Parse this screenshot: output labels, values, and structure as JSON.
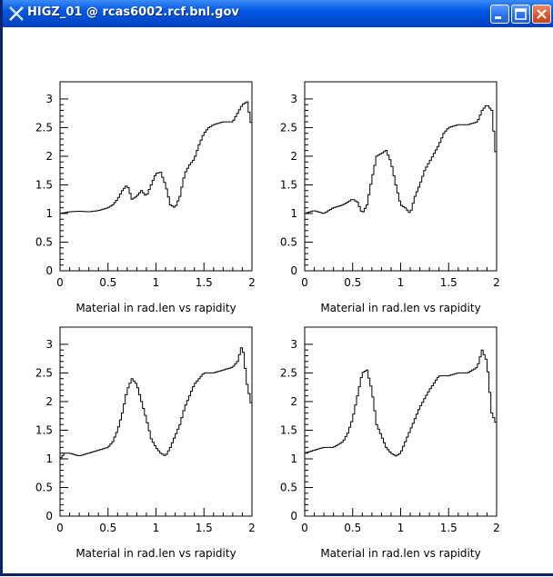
{
  "window": {
    "title": "HIGZ_01 @ rcas6002.rcf.bnl.gov",
    "icon": "x-window-icon",
    "buttons": [
      "minimize",
      "maximize",
      "close"
    ]
  },
  "chart_data": [
    {
      "type": "line",
      "xlabel": "Material in rad.len vs rapidity",
      "xlim": [
        0,
        2
      ],
      "ylim": [
        0,
        3.3
      ],
      "xticks": [
        "0",
        "0.5",
        "1",
        "1.5",
        "2"
      ],
      "yticks": [
        "0",
        "0.5",
        "1",
        "1.5",
        "2",
        "2.5",
        "3"
      ],
      "series": [
        {
          "x": [
            0,
            0.1,
            0.2,
            0.3,
            0.4,
            0.5,
            0.55,
            0.6,
            0.65,
            0.7,
            0.75,
            0.8,
            0.85,
            0.9,
            0.95,
            1.0,
            1.05,
            1.1,
            1.15,
            1.2,
            1.25,
            1.3,
            1.35,
            1.4,
            1.45,
            1.5,
            1.55,
            1.6,
            1.7,
            1.8,
            1.9,
            1.95,
            2.0
          ],
          "y": [
            1.0,
            1.03,
            1.04,
            1.03,
            1.05,
            1.1,
            1.15,
            1.25,
            1.4,
            1.5,
            1.25,
            1.3,
            1.4,
            1.3,
            1.5,
            1.7,
            1.72,
            1.5,
            1.15,
            1.1,
            1.3,
            1.7,
            1.85,
            1.95,
            2.2,
            2.4,
            2.5,
            2.55,
            2.6,
            2.6,
            2.9,
            2.95,
            2.5
          ]
        }
      ]
    },
    {
      "type": "line",
      "xlabel": "Material in rad.len vs rapidity",
      "xlim": [
        0,
        2
      ],
      "ylim": [
        0,
        3.3
      ],
      "xticks": [
        "0",
        "0.5",
        "1",
        "1.5",
        "2"
      ],
      "yticks": [
        "0",
        "0.5",
        "1",
        "1.5",
        "2",
        "2.5",
        "3"
      ],
      "series": [
        {
          "x": [
            0,
            0.1,
            0.2,
            0.3,
            0.4,
            0.5,
            0.55,
            0.6,
            0.65,
            0.7,
            0.75,
            0.8,
            0.85,
            0.9,
            0.95,
            1.0,
            1.05,
            1.1,
            1.15,
            1.2,
            1.25,
            1.3,
            1.35,
            1.4,
            1.45,
            1.5,
            1.6,
            1.7,
            1.8,
            1.85,
            1.9,
            1.95,
            2.0
          ],
          "y": [
            1.0,
            1.05,
            1.0,
            1.1,
            1.15,
            1.25,
            1.2,
            1.0,
            1.15,
            1.6,
            2.0,
            2.05,
            2.1,
            1.9,
            1.5,
            1.15,
            1.1,
            1.0,
            1.3,
            1.5,
            1.75,
            1.9,
            2.05,
            2.2,
            2.4,
            2.5,
            2.55,
            2.55,
            2.6,
            2.8,
            2.9,
            2.8,
            1.9
          ]
        }
      ]
    },
    {
      "type": "line",
      "xlabel": "Material in rad.len vs rapidity",
      "xlim": [
        0,
        2
      ],
      "ylim": [
        0,
        3.3
      ],
      "xticks": [
        "0",
        "0.5",
        "1",
        "1.5",
        "2"
      ],
      "yticks": [
        "0",
        "0.5",
        "1",
        "1.5",
        "2",
        "2.5",
        "3"
      ],
      "series": [
        {
          "x": [
            0,
            0.05,
            0.1,
            0.2,
            0.3,
            0.4,
            0.5,
            0.55,
            0.6,
            0.65,
            0.7,
            0.75,
            0.8,
            0.85,
            0.9,
            0.95,
            1.0,
            1.05,
            1.1,
            1.15,
            1.2,
            1.25,
            1.3,
            1.35,
            1.4,
            1.5,
            1.6,
            1.7,
            1.8,
            1.85,
            1.9,
            1.95,
            2.0
          ],
          "y": [
            1.0,
            1.1,
            1.1,
            1.05,
            1.1,
            1.15,
            1.2,
            1.3,
            1.5,
            1.8,
            2.2,
            2.4,
            2.3,
            2.0,
            1.7,
            1.35,
            1.2,
            1.1,
            1.05,
            1.2,
            1.4,
            1.6,
            1.9,
            2.1,
            2.3,
            2.5,
            2.5,
            2.55,
            2.6,
            2.7,
            3.0,
            2.3,
            1.9
          ]
        }
      ]
    },
    {
      "type": "line",
      "xlabel": "Material in rad.len vs rapidity",
      "xlim": [
        0,
        2
      ],
      "ylim": [
        0,
        3.3
      ],
      "xticks": [
        "0",
        "0.5",
        "1",
        "1.5",
        "2"
      ],
      "yticks": [
        "0",
        "0.5",
        "1",
        "1.5",
        "2",
        "2.5",
        "3"
      ],
      "series": [
        {
          "x": [
            0,
            0.1,
            0.2,
            0.3,
            0.4,
            0.45,
            0.5,
            0.55,
            0.6,
            0.65,
            0.7,
            0.75,
            0.8,
            0.85,
            0.9,
            0.95,
            1.0,
            1.05,
            1.1,
            1.2,
            1.3,
            1.4,
            1.5,
            1.6,
            1.7,
            1.8,
            1.85,
            1.9,
            1.95,
            2.0
          ],
          "y": [
            1.1,
            1.15,
            1.2,
            1.2,
            1.3,
            1.45,
            1.7,
            2.1,
            2.5,
            2.55,
            2.2,
            1.6,
            1.4,
            1.2,
            1.1,
            1.05,
            1.1,
            1.3,
            1.5,
            1.9,
            2.2,
            2.45,
            2.45,
            2.5,
            2.5,
            2.6,
            2.9,
            2.7,
            1.8,
            1.6
          ]
        }
      ]
    }
  ]
}
